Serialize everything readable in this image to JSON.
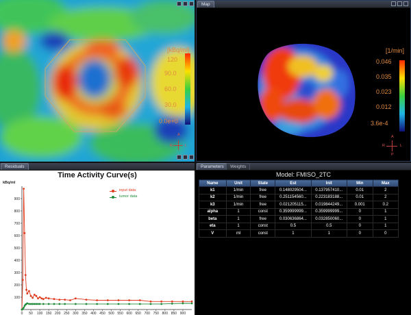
{
  "tabs": {
    "map": "Map",
    "residuals": "Residuals",
    "parameters": "Parameters",
    "weights": "Weights"
  },
  "left_image": {
    "unit": "[kBq/ml]",
    "ticks": [
      "120",
      "90.0",
      "60.0",
      "30.0",
      "0.0e+0"
    ],
    "orientation": {
      "top": "A",
      "left": "R",
      "right": "L"
    }
  },
  "right_image": {
    "unit": "[1/min]",
    "ticks": [
      "0.046",
      "0.035",
      "0.023",
      "0.012",
      "3.6e-4"
    ],
    "orientation": {
      "top": "A",
      "left": "R",
      "right": "L",
      "bottom": "P"
    }
  },
  "tac": {
    "title": "Time Activity Curve(s)",
    "ylabel": "kBq/ml",
    "legend": [
      "input data",
      "tumor data"
    ],
    "colors": {
      "input": "#e03a1e",
      "tumor": "#1f8a3a"
    }
  },
  "chart_data": {
    "type": "line",
    "title": "Time Activity Curve(s)",
    "ylabel": "kBq/ml",
    "xlabel": "",
    "xlim": [
      0,
      950
    ],
    "ylim": [
      0,
      1000
    ],
    "x_ticks": [
      "0",
      "50",
      "100",
      "150",
      "200",
      "250",
      "300",
      "350",
      "400",
      "450",
      "500",
      "550",
      "600",
      "650",
      "700",
      "750",
      "800",
      "850",
      "900"
    ],
    "y_ticks": [
      "100",
      "200",
      "300",
      "400",
      "500",
      "600",
      "700",
      "800",
      "900"
    ],
    "series": [
      {
        "name": "input data",
        "x": [
          0,
          5,
          10,
          15,
          20,
          25,
          30,
          40,
          50,
          60,
          70,
          80,
          90,
          100,
          110,
          120,
          135,
          150,
          180,
          210,
          240,
          270,
          300,
          360,
          420,
          480,
          540,
          600,
          660,
          720,
          780,
          840,
          900,
          950
        ],
        "y": [
          0,
          240,
          980,
          620,
          280,
          160,
          130,
          150,
          110,
          95,
          120,
          110,
          90,
          100,
          90,
          85,
          95,
          90,
          85,
          80,
          80,
          75,
          90,
          80,
          75,
          75,
          75,
          75,
          75,
          65,
          65,
          65,
          65,
          65
        ]
      },
      {
        "name": "tumor data",
        "x": [
          0,
          5,
          10,
          15,
          20,
          25,
          30,
          40,
          50,
          60,
          70,
          80,
          90,
          100,
          120,
          150,
          180,
          210,
          240,
          300,
          360,
          420,
          480,
          540,
          600,
          660,
          720,
          780,
          840,
          900,
          950
        ],
        "y": [
          0,
          5,
          15,
          30,
          40,
          45,
          50,
          45,
          45,
          45,
          45,
          45,
          45,
          45,
          45,
          45,
          45,
          45,
          45,
          45,
          45,
          45,
          45,
          45,
          45,
          45,
          45,
          45,
          48,
          50,
          50
        ]
      }
    ]
  },
  "params": {
    "title": "Model: FMISO_2TC",
    "headers": [
      "Name",
      "Unit",
      "State",
      "Est",
      "Init",
      "Min",
      "Max"
    ],
    "rows": [
      [
        "k1",
        "1/min",
        "free",
        "0.148029504...",
        "0.137957410...",
        "0.01",
        "2"
      ],
      [
        "k2",
        "1/min",
        "free",
        "0.251154560...",
        "0.223183188...",
        "0.01",
        "2"
      ],
      [
        "k3",
        "1/min",
        "free",
        "0.021205115...",
        "0.019844249...",
        "0.001",
        "0.2"
      ],
      [
        "alpha",
        "1",
        "const",
        "0.359999999...",
        "0.359999999...",
        "0",
        "1"
      ],
      [
        "beta",
        "1",
        "free",
        "0.030636864...",
        "0.032850060...",
        "0",
        "1"
      ],
      [
        "eta",
        "1",
        "const",
        "0.5",
        "0.5",
        "0",
        "1"
      ],
      [
        "V",
        "ml",
        "const",
        "1",
        "1",
        "0",
        "0"
      ]
    ]
  }
}
